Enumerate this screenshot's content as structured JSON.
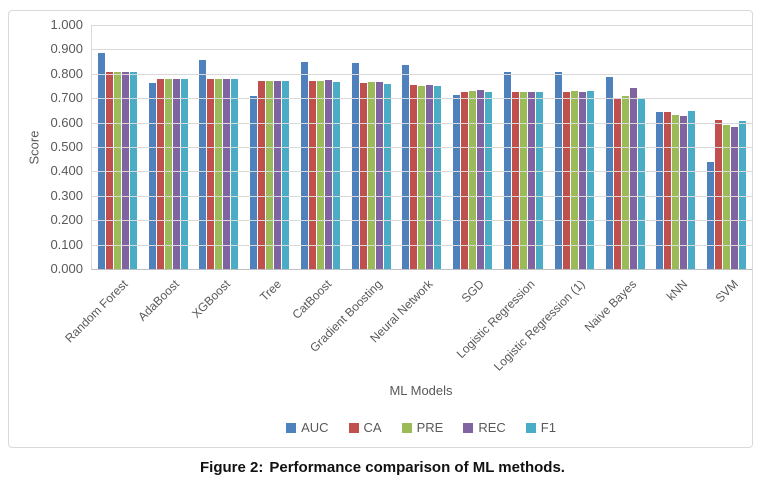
{
  "figure": {
    "caption_prefix": "Figure 2:",
    "caption_text": "Performance comparison of ML methods."
  },
  "chart_data": {
    "type": "bar",
    "title": "",
    "xlabel": "ML Models",
    "ylabel": "Score",
    "ylim": [
      0,
      1
    ],
    "ytick_step": 0.1,
    "ytick_labels": [
      "1.000",
      "0.900",
      "0.800",
      "0.700",
      "0.600",
      "0.500",
      "0.400",
      "0.300",
      "0.200",
      "0.100",
      "0.000"
    ],
    "grid": true,
    "legend_position": "bottom",
    "categories": [
      "Random Forest",
      "AdaBoost",
      "XGBoost",
      "Tree",
      "CatBoost",
      "Gradient Boosting",
      "Neural Network",
      "SGD",
      "Logistic Regression",
      "Logistic Regression (1)",
      "Naive Bayes",
      "kNN",
      "SVM"
    ],
    "series": [
      {
        "name": "AUC",
        "color": "#4F81BD",
        "values": [
          0.885,
          0.762,
          0.856,
          0.707,
          0.85,
          0.843,
          0.837,
          0.713,
          0.808,
          0.807,
          0.786,
          0.643,
          0.438
        ]
      },
      {
        "name": "CA",
        "color": "#C0504D",
        "values": [
          0.808,
          0.779,
          0.777,
          0.769,
          0.769,
          0.761,
          0.753,
          0.726,
          0.727,
          0.725,
          0.7,
          0.645,
          0.611
        ]
      },
      {
        "name": "PRE",
        "color": "#9BBB59",
        "values": [
          0.808,
          0.779,
          0.777,
          0.769,
          0.771,
          0.765,
          0.752,
          0.731,
          0.724,
          0.728,
          0.707,
          0.633,
          0.59
        ]
      },
      {
        "name": "REC",
        "color": "#8064A2",
        "values": [
          0.808,
          0.779,
          0.777,
          0.769,
          0.773,
          0.768,
          0.753,
          0.735,
          0.724,
          0.724,
          0.741,
          0.625,
          0.584
        ]
      },
      {
        "name": "F1",
        "color": "#4BACC6",
        "values": [
          0.808,
          0.778,
          0.777,
          0.769,
          0.766,
          0.757,
          0.752,
          0.727,
          0.727,
          0.728,
          0.697,
          0.646,
          0.608
        ]
      }
    ]
  }
}
